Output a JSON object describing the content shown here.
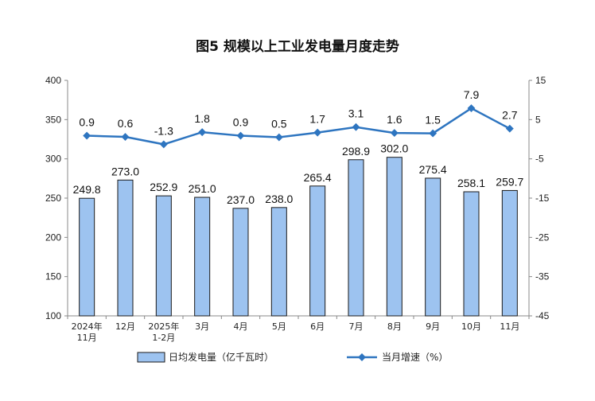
{
  "chart_data": {
    "type": "bar",
    "title": "图5 规模以上工业发电量月度走势",
    "categories": [
      [
        "2024年",
        "11月"
      ],
      [
        "12月"
      ],
      [
        "2025年",
        "1-2月"
      ],
      [
        "3月"
      ],
      [
        "4月"
      ],
      [
        "5月"
      ],
      [
        "6月"
      ],
      [
        "7月"
      ],
      [
        "8月"
      ],
      [
        "9月"
      ],
      [
        "10月"
      ],
      [
        "11月"
      ]
    ],
    "series": [
      {
        "name": "日均发电量（亿千瓦时）",
        "type": "bar",
        "axis": "left",
        "color": "#9DC3F0",
        "values": [
          249.8,
          273.0,
          252.9,
          251.0,
          237.0,
          238.0,
          265.4,
          298.9,
          302.0,
          275.4,
          258.1,
          259.7
        ],
        "labels": [
          "249.8",
          "273.0",
          "252.9",
          "251.0",
          "237.0",
          "238.0",
          "265.4",
          "298.9",
          "302.0",
          "275.4",
          "258.1",
          "259.7"
        ]
      },
      {
        "name": "当月增速（%）",
        "type": "line",
        "axis": "right",
        "color": "#2E75C0",
        "values": [
          0.9,
          0.6,
          -1.3,
          1.8,
          0.9,
          0.5,
          1.7,
          3.1,
          1.6,
          1.5,
          7.9,
          2.7
        ],
        "labels": [
          "0.9",
          "0.6",
          "-1.3",
          "1.8",
          "0.9",
          "0.5",
          "1.7",
          "3.1",
          "1.6",
          "1.5",
          "7.9",
          "2.7"
        ]
      }
    ],
    "y_left": {
      "min": 100,
      "max": 400,
      "ticks": [
        "100",
        "150",
        "200",
        "250",
        "300",
        "350",
        "400"
      ]
    },
    "y_right": {
      "min": -45,
      "max": 15,
      "ticks": [
        "-45",
        "-35",
        "-25",
        "-15",
        "-5",
        "5",
        "15"
      ]
    },
    "legend_position": "bottom"
  }
}
